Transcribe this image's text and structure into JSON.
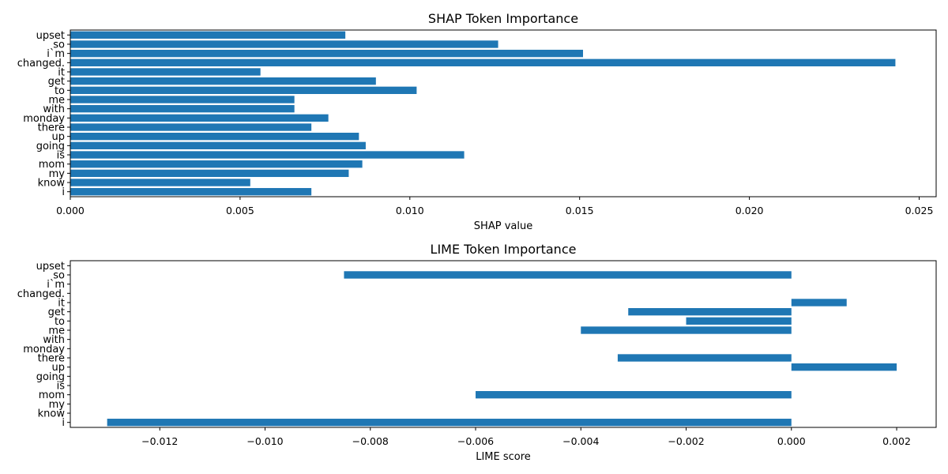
{
  "chart_data": [
    {
      "type": "bar",
      "orientation": "horizontal",
      "title": "SHAP Token Importance",
      "xlabel": "SHAP value",
      "ylabel": "",
      "xlim": [
        0,
        0.0255
      ],
      "xticks": [
        0.0,
        0.005,
        0.01,
        0.015,
        0.02,
        0.025
      ],
      "xtick_labels": [
        "0.000",
        "0.005",
        "0.010",
        "0.015",
        "0.020",
        "0.025"
      ],
      "categories": [
        "i",
        "know",
        "my",
        "mom",
        "is",
        "going",
        "up",
        "there",
        "monday",
        "with",
        "me",
        "to",
        "get",
        "it",
        "changed.",
        "i`m",
        "so",
        "upset"
      ],
      "values": [
        0.0071,
        0.0053,
        0.0082,
        0.0086,
        0.0116,
        0.0087,
        0.0085,
        0.0071,
        0.0076,
        0.0066,
        0.0066,
        0.0102,
        0.009,
        0.0056,
        0.0243,
        0.0151,
        0.0126,
        0.0081
      ],
      "bar_color": "#1f77b4",
      "grid": false
    },
    {
      "type": "bar",
      "orientation": "horizontal",
      "title": "LIME Token Importance",
      "xlabel": "LIME score",
      "ylabel": "",
      "xlim": [
        -0.0137,
        0.00275
      ],
      "xticks": [
        -0.012,
        -0.01,
        -0.008,
        -0.006,
        -0.004,
        -0.002,
        0.0,
        0.002
      ],
      "xtick_labels": [
        "−0.012",
        "−0.010",
        "−0.008",
        "−0.006",
        "−0.004",
        "−0.002",
        "0.000",
        "0.002"
      ],
      "categories": [
        "i",
        "know",
        "my",
        "mom",
        "is",
        "going",
        "up",
        "there",
        "monday",
        "with",
        "me",
        "to",
        "get",
        "it",
        "changed.",
        "i`m",
        "so",
        "upset"
      ],
      "values": [
        -0.013,
        0,
        0,
        -0.006,
        0,
        0,
        0.002,
        -0.0033,
        0,
        0,
        -0.004,
        -0.002,
        -0.0031,
        0.00105,
        0,
        0,
        -0.0085,
        0
      ],
      "bar_color": "#1f77b4",
      "grid": false
    }
  ]
}
